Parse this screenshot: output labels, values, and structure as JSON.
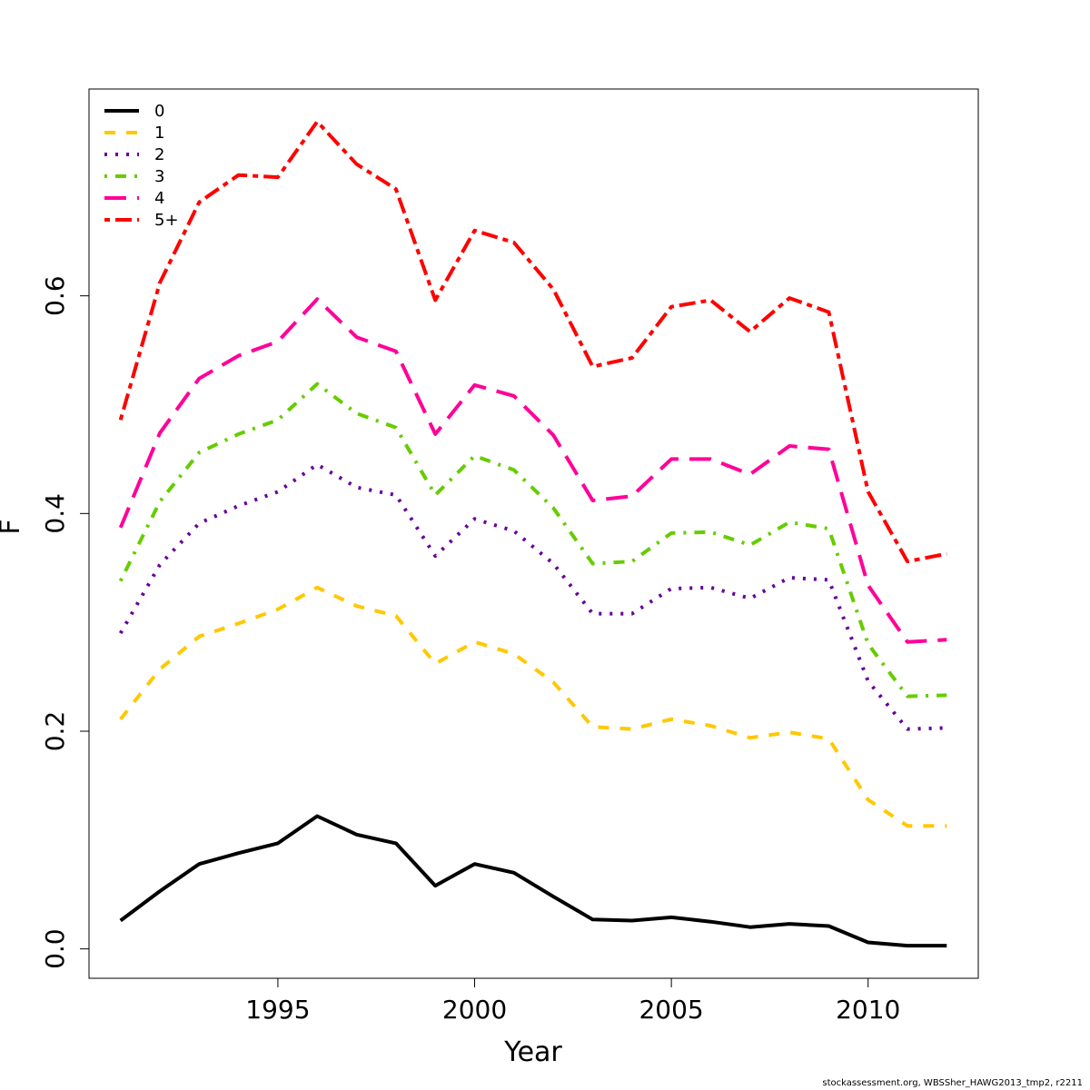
{
  "chart_data": {
    "type": "line",
    "title": "",
    "xlabel": "Year",
    "ylabel": "F",
    "xlim": [
      1990.2,
      2012.8
    ],
    "ylim": [
      -0.027,
      0.79
    ],
    "x_ticks": [
      1995,
      2000,
      2005,
      2010
    ],
    "y_ticks": [
      0.0,
      0.2,
      0.4,
      0.6
    ],
    "y_tick_labels": [
      "0.0",
      "0.2",
      "0.4",
      "0.6"
    ],
    "legend_position": "top-left",
    "grid": false,
    "x": [
      1991,
      1992,
      1993,
      1994,
      1995,
      1996,
      1997,
      1998,
      1999,
      2000,
      2001,
      2002,
      2003,
      2004,
      2005,
      2006,
      2007,
      2008,
      2009,
      2010,
      2011,
      2012
    ],
    "series": [
      {
        "name": "0",
        "color": "#000000",
        "dash": "solid",
        "values": [
          0.026,
          0.053,
          0.078,
          0.088,
          0.097,
          0.122,
          0.105,
          0.097,
          0.058,
          0.078,
          0.07,
          0.048,
          0.027,
          0.026,
          0.029,
          0.025,
          0.02,
          0.023,
          0.021,
          0.006,
          0.003,
          0.003
        ]
      },
      {
        "name": "1",
        "color": "#FFC800",
        "dash": "dashed",
        "values": [
          0.211,
          0.257,
          0.287,
          0.299,
          0.312,
          0.332,
          0.315,
          0.306,
          0.262,
          0.282,
          0.271,
          0.245,
          0.204,
          0.202,
          0.211,
          0.205,
          0.194,
          0.199,
          0.193,
          0.137,
          0.113,
          0.113
        ]
      },
      {
        "name": "2",
        "color": "#660099",
        "dash": "dotted",
        "values": [
          0.29,
          0.353,
          0.391,
          0.407,
          0.42,
          0.445,
          0.424,
          0.417,
          0.361,
          0.395,
          0.384,
          0.354,
          0.308,
          0.308,
          0.331,
          0.332,
          0.322,
          0.341,
          0.339,
          0.246,
          0.202,
          0.203
        ]
      },
      {
        "name": "3",
        "color": "#66CC00",
        "dash": "dotdash",
        "values": [
          0.338,
          0.411,
          0.456,
          0.473,
          0.486,
          0.519,
          0.492,
          0.479,
          0.417,
          0.453,
          0.44,
          0.405,
          0.354,
          0.356,
          0.382,
          0.383,
          0.371,
          0.392,
          0.386,
          0.28,
          0.232,
          0.233
        ]
      },
      {
        "name": "4",
        "color": "#FF0099",
        "dash": "longdash",
        "values": [
          0.387,
          0.474,
          0.524,
          0.545,
          0.558,
          0.597,
          0.562,
          0.549,
          0.473,
          0.518,
          0.508,
          0.472,
          0.412,
          0.416,
          0.45,
          0.45,
          0.436,
          0.462,
          0.459,
          0.334,
          0.282,
          0.284
        ]
      },
      {
        "name": "5+",
        "color": "#FF0000",
        "dash": "twodash",
        "values": [
          0.486,
          0.612,
          0.686,
          0.711,
          0.709,
          0.76,
          0.721,
          0.698,
          0.596,
          0.66,
          0.649,
          0.606,
          0.535,
          0.543,
          0.59,
          0.596,
          0.567,
          0.598,
          0.585,
          0.42,
          0.356,
          0.363
        ]
      }
    ]
  },
  "footer": {
    "credit": "stockassessment.org, WBSSher_HAWG2013_tmp2, r2211"
  }
}
